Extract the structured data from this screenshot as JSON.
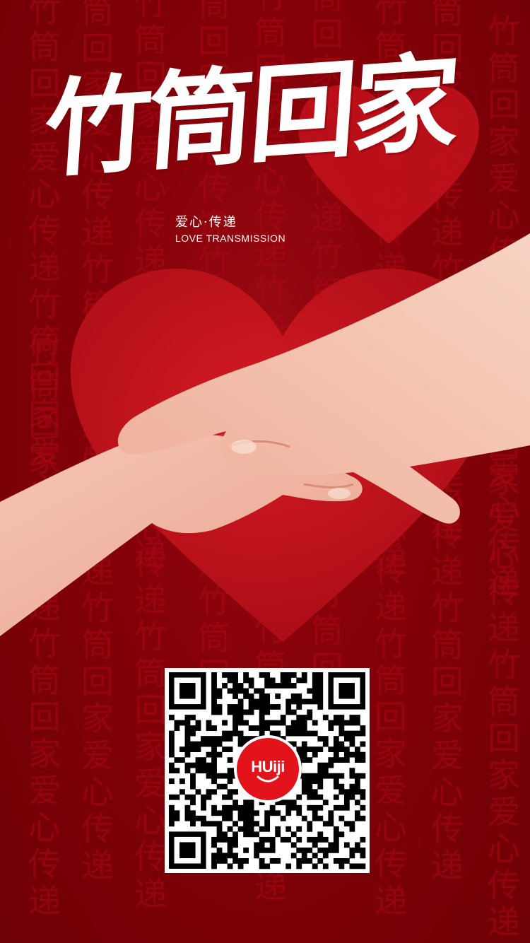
{
  "poster": {
    "title": "竹筒回家",
    "subtitle_cn": "爱心·传递",
    "subtitle_en": "LOVE TRANSMISSION",
    "background_phrase": "竹筒回家爱心传递",
    "qr_logo_text": "HUiji"
  },
  "colors": {
    "background": "#830008",
    "heart": "#c3121c",
    "title": "#ffffff",
    "logo": "#e3131c"
  },
  "icons": {
    "heart_large": "heart-icon",
    "heart_small": "heart-icon",
    "qr_code": "qr-code-icon",
    "logo_smile": "smile-icon"
  }
}
